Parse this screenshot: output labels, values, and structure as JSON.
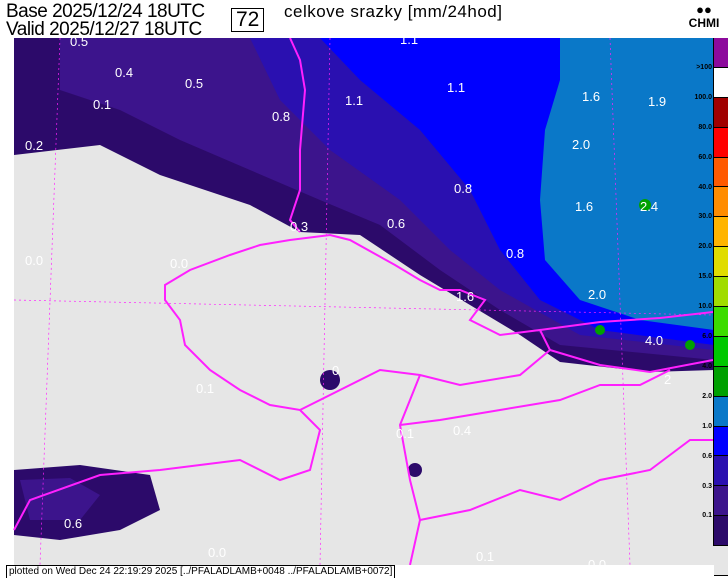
{
  "header": {
    "base": "Base 2025/12/24 18UTC",
    "valid": "Valid 2025/12/27 18UTC",
    "forecast_hour": "72",
    "title": "celkove srazky [mm/24hod]",
    "logo": "CHMI"
  },
  "legend": {
    "labels": [
      ">100",
      "100.0",
      "80.0",
      "60.0",
      "40.0",
      "30.0",
      "20.0",
      "15.0",
      "10.0",
      "6.0",
      "4.0",
      "2.0",
      "1.0",
      "0.6",
      "0.3",
      "0.1"
    ],
    "colors": [
      "#8c0a9c",
      "#ffffff",
      "#a00000",
      "#ff0000",
      "#ff5a00",
      "#ff8c00",
      "#ffb400",
      "#e0dc00",
      "#a0dc00",
      "#3cdc00",
      "#00c800",
      "#00a000",
      "#0a78c8",
      "#0000ff",
      "#2a10b0",
      "#3c148c",
      "#2c0a6a",
      "#e6e6e6"
    ]
  },
  "map": {
    "labels": [
      "0.5",
      "0.4",
      "0.5",
      "1.1",
      "1.1",
      "1.1",
      "1.6",
      "1.9",
      "0.1",
      "0.8",
      "2.0",
      "0.2",
      "0.8",
      "1.6",
      "2.4",
      "0.3",
      "0.6",
      "0.8",
      "0.0",
      "0.0",
      "1.6",
      "2.0",
      "4.0",
      "0",
      "0.1",
      "2",
      "0.1",
      "0.4",
      "0.6",
      "0.0",
      "0.1",
      "0.0"
    ],
    "colors": {
      "no_precip": "#e6e6e6",
      "border": "#ff20ff"
    }
  },
  "footer": "plotted on Wed Dec 24 22:19:29 2025 [../PFALADLAMB+0048 ../PFALADLAMB+0072]"
}
